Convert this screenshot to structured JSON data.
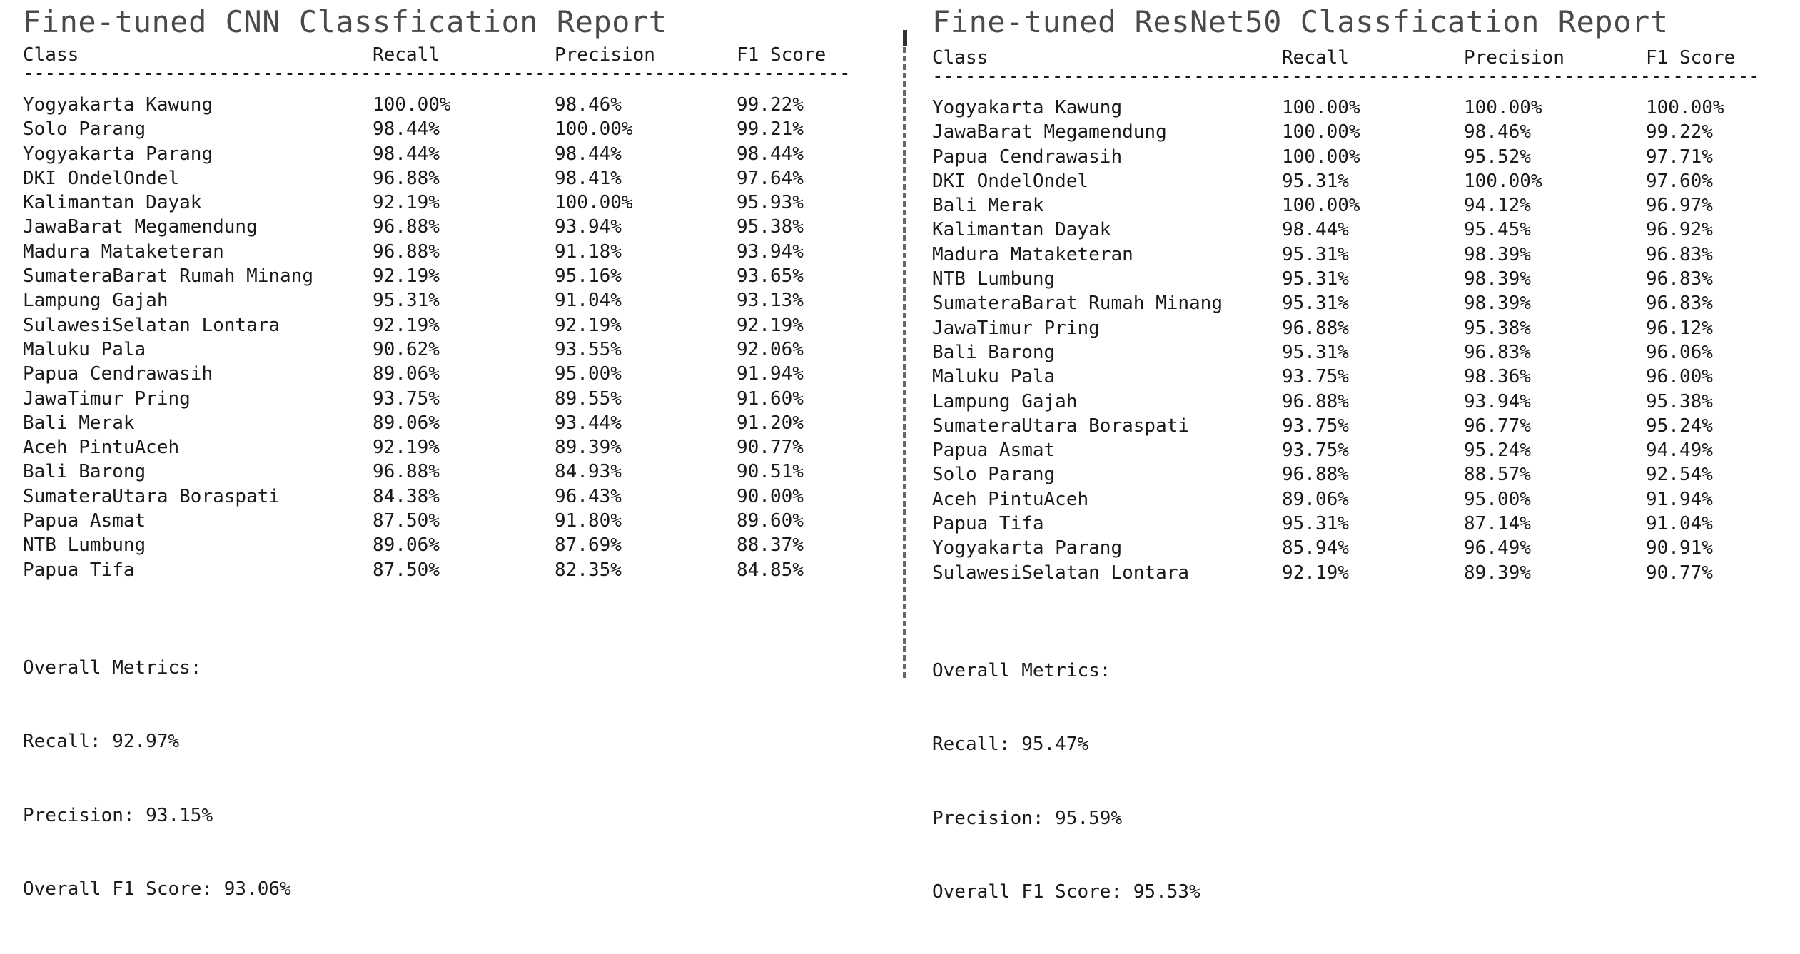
{
  "left": {
    "title": "Fine-tuned CNN Classfication Report",
    "headers": {
      "class": "Class",
      "recall": "Recall",
      "precision": "Precision",
      "f1": "F1 Score"
    },
    "rule": "----------------------------------------------------------------------------",
    "rows": [
      {
        "class": "Yogyakarta Kawung",
        "recall": "100.00%",
        "precision": "98.46%",
        "f1": "99.22%"
      },
      {
        "class": "Solo Parang",
        "recall": "98.44%",
        "precision": "100.00%",
        "f1": "99.21%"
      },
      {
        "class": "Yogyakarta Parang",
        "recall": "98.44%",
        "precision": "98.44%",
        "f1": "98.44%"
      },
      {
        "class": "DKI OndelOndel",
        "recall": "96.88%",
        "precision": "98.41%",
        "f1": "97.64%"
      },
      {
        "class": "Kalimantan Dayak",
        "recall": "92.19%",
        "precision": "100.00%",
        "f1": "95.93%"
      },
      {
        "class": "JawaBarat Megamendung",
        "recall": "96.88%",
        "precision": "93.94%",
        "f1": "95.38%"
      },
      {
        "class": "Madura Mataketeran",
        "recall": "96.88%",
        "precision": "91.18%",
        "f1": "93.94%"
      },
      {
        "class": "SumateraBarat Rumah Minang",
        "recall": "92.19%",
        "precision": "95.16%",
        "f1": "93.65%"
      },
      {
        "class": "Lampung Gajah",
        "recall": "95.31%",
        "precision": "91.04%",
        "f1": "93.13%"
      },
      {
        "class": "SulawesiSelatan Lontara",
        "recall": "92.19%",
        "precision": "92.19%",
        "f1": "92.19%"
      },
      {
        "class": "Maluku Pala",
        "recall": "90.62%",
        "precision": "93.55%",
        "f1": "92.06%"
      },
      {
        "class": "Papua Cendrawasih",
        "recall": "89.06%",
        "precision": "95.00%",
        "f1": "91.94%"
      },
      {
        "class": "JawaTimur Pring",
        "recall": "93.75%",
        "precision": "89.55%",
        "f1": "91.60%"
      },
      {
        "class": "Bali Merak",
        "recall": "89.06%",
        "precision": "93.44%",
        "f1": "91.20%"
      },
      {
        "class": "Aceh PintuAceh",
        "recall": "92.19%",
        "precision": "89.39%",
        "f1": "90.77%"
      },
      {
        "class": "Bali Barong",
        "recall": "96.88%",
        "precision": "84.93%",
        "f1": "90.51%"
      },
      {
        "class": "SumateraUtara Boraspati",
        "recall": "84.38%",
        "precision": "96.43%",
        "f1": "90.00%"
      },
      {
        "class": "Papua Asmat",
        "recall": "87.50%",
        "precision": "91.80%",
        "f1": "89.60%"
      },
      {
        "class": "NTB Lumbung",
        "recall": "89.06%",
        "precision": "87.69%",
        "f1": "88.37%"
      },
      {
        "class": "Papua Tifa",
        "recall": "87.50%",
        "precision": "82.35%",
        "f1": "84.85%"
      }
    ],
    "overall": {
      "heading": "Overall Metrics:",
      "recall": "Recall: 92.97%",
      "precision": "Precision: 93.15%",
      "f1": "Overall F1 Score: 93.06%"
    }
  },
  "right": {
    "title": "Fine-tuned ResNet50 Classfication Report",
    "headers": {
      "class": "Class",
      "recall": "Recall",
      "precision": "Precision",
      "f1": "F1 Score"
    },
    "rule": "----------------------------------------------------------------------------",
    "rows": [
      {
        "class": "Yogyakarta Kawung",
        "recall": "100.00%",
        "precision": "100.00%",
        "f1": "100.00%"
      },
      {
        "class": "JawaBarat Megamendung",
        "recall": "100.00%",
        "precision": "98.46%",
        "f1": "99.22%"
      },
      {
        "class": "Papua Cendrawasih",
        "recall": "100.00%",
        "precision": "95.52%",
        "f1": "97.71%"
      },
      {
        "class": "DKI OndelOndel",
        "recall": "95.31%",
        "precision": "100.00%",
        "f1": "97.60%"
      },
      {
        "class": "Bali Merak",
        "recall": "100.00%",
        "precision": "94.12%",
        "f1": "96.97%"
      },
      {
        "class": "Kalimantan Dayak",
        "recall": "98.44%",
        "precision": "95.45%",
        "f1": "96.92%"
      },
      {
        "class": "Madura Mataketeran",
        "recall": "95.31%",
        "precision": "98.39%",
        "f1": "96.83%"
      },
      {
        "class": "NTB Lumbung",
        "recall": "95.31%",
        "precision": "98.39%",
        "f1": "96.83%"
      },
      {
        "class": "SumateraBarat Rumah Minang",
        "recall": "95.31%",
        "precision": "98.39%",
        "f1": "96.83%"
      },
      {
        "class": "JawaTimur Pring",
        "recall": "96.88%",
        "precision": "95.38%",
        "f1": "96.12%"
      },
      {
        "class": "Bali Barong",
        "recall": "95.31%",
        "precision": "96.83%",
        "f1": "96.06%"
      },
      {
        "class": "Maluku Pala",
        "recall": "93.75%",
        "precision": "98.36%",
        "f1": "96.00%"
      },
      {
        "class": "Lampung Gajah",
        "recall": "96.88%",
        "precision": "93.94%",
        "f1": "95.38%"
      },
      {
        "class": "SumateraUtara Boraspati",
        "recall": "93.75%",
        "precision": "96.77%",
        "f1": "95.24%"
      },
      {
        "class": "Papua Asmat",
        "recall": "93.75%",
        "precision": "95.24%",
        "f1": "94.49%"
      },
      {
        "class": "Solo Parang",
        "recall": "96.88%",
        "precision": "88.57%",
        "f1": "92.54%"
      },
      {
        "class": "Aceh PintuAceh",
        "recall": "89.06%",
        "precision": "95.00%",
        "f1": "91.94%"
      },
      {
        "class": "Papua Tifa",
        "recall": "95.31%",
        "precision": "87.14%",
        "f1": "91.04%"
      },
      {
        "class": "Yogyakarta Parang",
        "recall": "85.94%",
        "precision": "96.49%",
        "f1": "90.91%"
      },
      {
        "class": "SulawesiSelatan Lontara",
        "recall": "92.19%",
        "precision": "89.39%",
        "f1": "90.77%"
      }
    ],
    "overall": {
      "heading": "Overall Metrics:",
      "recall": "Recall: 95.47%",
      "precision": "Precision: 95.59%",
      "f1": "Overall F1 Score: 95.53%"
    }
  }
}
